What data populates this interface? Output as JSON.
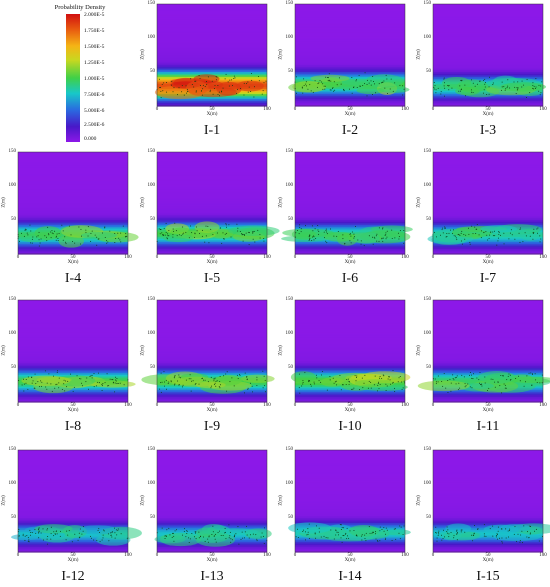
{
  "legend": {
    "title": "Probability Density",
    "ticks": [
      "2.000E-5",
      "1.750E-5",
      "1.500E-5",
      "1.250E-5",
      "1.000E-5",
      "7.500E-6",
      "5.000E-6",
      "2.500E-6",
      "0.000"
    ]
  },
  "chart_data": {
    "type": "heatmap",
    "xlabel": "X(m)",
    "ylabel": "Z(m)",
    "xlim": [
      0,
      100
    ],
    "ylim": [
      0,
      150
    ],
    "xticks": [
      "0",
      "50",
      "100"
    ],
    "yticks": [
      "150",
      "100",
      "50"
    ],
    "colorbar_range": [
      0,
      2e-05
    ],
    "panels": [
      {
        "label": "I-1",
        "band_center": 30,
        "band_halfwidth": 18,
        "peak": 1.8e-05
      },
      {
        "label": "I-2",
        "band_center": 32,
        "band_halfwidth": 16,
        "peak": 1e-05
      },
      {
        "label": "I-3",
        "band_center": 28,
        "band_halfwidth": 15,
        "peak": 9e-06
      },
      {
        "label": "I-4",
        "band_center": 28,
        "band_halfwidth": 16,
        "peak": 9.5e-06
      },
      {
        "label": "I-5",
        "band_center": 30,
        "band_halfwidth": 16,
        "peak": 1e-05
      },
      {
        "label": "I-6",
        "band_center": 28,
        "band_halfwidth": 15,
        "peak": 9e-06
      },
      {
        "label": "I-7",
        "band_center": 28,
        "band_halfwidth": 15,
        "peak": 8.5e-06
      },
      {
        "label": "I-8",
        "band_center": 30,
        "band_halfwidth": 16,
        "peak": 1e-05
      },
      {
        "label": "I-9",
        "band_center": 30,
        "band_halfwidth": 16,
        "peak": 1e-05
      },
      {
        "label": "I-10",
        "band_center": 30,
        "band_halfwidth": 16,
        "peak": 1.05e-05
      },
      {
        "label": "I-11",
        "band_center": 30,
        "band_halfwidth": 16,
        "peak": 9.5e-06
      },
      {
        "label": "I-12",
        "band_center": 26,
        "band_halfwidth": 14,
        "peak": 7.5e-06
      },
      {
        "label": "I-13",
        "band_center": 26,
        "band_halfwidth": 14,
        "peak": 7.5e-06
      },
      {
        "label": "I-14",
        "band_center": 28,
        "band_halfwidth": 14,
        "peak": 8e-06
      },
      {
        "label": "I-15",
        "band_center": 27,
        "band_halfwidth": 14,
        "peak": 7.5e-06
      }
    ]
  }
}
